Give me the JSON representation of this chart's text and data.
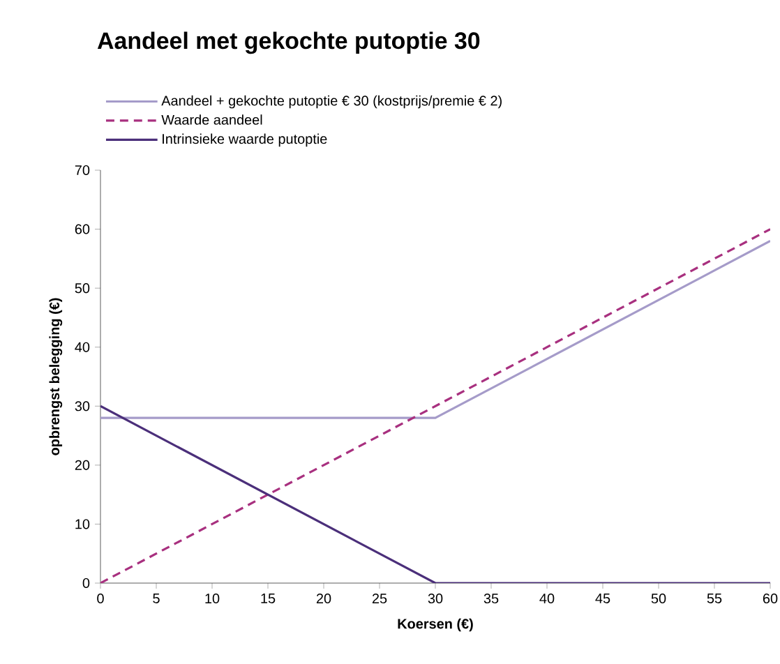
{
  "chart_data": {
    "type": "line",
    "title": "Aandeel met gekochte putoptie 30",
    "xlabel": "Koersen (€)",
    "ylabel": "opbrengst belegging (€)",
    "xlim": [
      0,
      60
    ],
    "ylim": [
      0,
      70
    ],
    "xticks": [
      0,
      5,
      10,
      15,
      20,
      25,
      30,
      35,
      40,
      45,
      50,
      55,
      60
    ],
    "yticks": [
      0,
      10,
      20,
      30,
      40,
      50,
      60,
      70
    ],
    "legend": "top",
    "grid": false,
    "series": [
      {
        "name": "Aandeel + gekochte putoptie € 30 (kostprijs/premie € 2)",
        "color": "#a59bc9",
        "x": [
          0,
          30,
          60
        ],
        "values": [
          28,
          28,
          58
        ],
        "line_style": "solid"
      },
      {
        "name": "Waarde aandeel",
        "color": "#a8307f",
        "x": [
          0,
          60
        ],
        "values": [
          0,
          60
        ],
        "line_style": "dashed"
      },
      {
        "name": "Intrinsieke waarde putoptie",
        "color": "#4b2f7a",
        "x": [
          0,
          30,
          60
        ],
        "values": [
          30,
          0,
          0
        ],
        "line_style": "solid"
      }
    ]
  }
}
